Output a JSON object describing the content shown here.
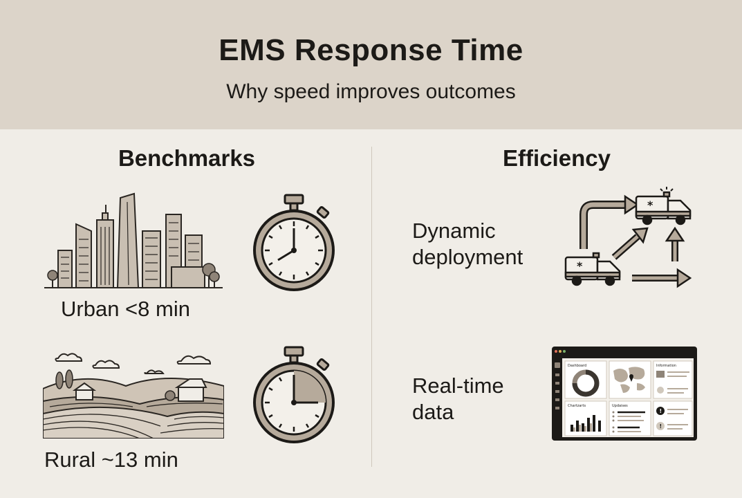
{
  "header": {
    "title": "EMS Response Time",
    "subtitle": "Why speed improves outcomes"
  },
  "benchmarks": {
    "heading": "Benchmarks",
    "urban_label": "Urban <8 min",
    "rural_label": "Rural ~13 min",
    "urban_icon": "city-skyline-icon",
    "rural_icon": "rural-landscape-icon",
    "stopwatch_icon": "stopwatch-icon"
  },
  "efficiency": {
    "heading": "Efficiency",
    "deployment_line1": "Dynamic",
    "deployment_line2": "deployment",
    "data_line1": "Real-time",
    "data_line2": "data",
    "deployment_icon": "ambulance-route-icon",
    "data_icon": "dashboard-icon"
  },
  "dashboard": {
    "panel1": "Dashboard",
    "panel2": "Information",
    "panel3": "Chartzarts",
    "panel4": "Updaises"
  },
  "colors": {
    "header_bg": "#dcd4c9",
    "page_bg": "#f0ede7",
    "ink": "#1c1a17",
    "fill": "#b6aa9b"
  }
}
